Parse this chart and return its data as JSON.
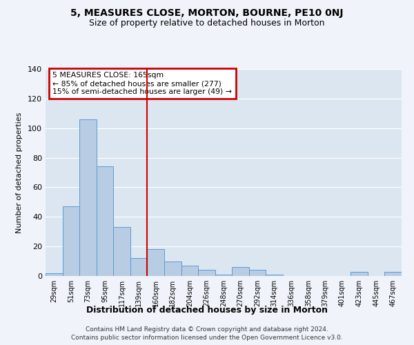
{
  "title": "5, MEASURES CLOSE, MORTON, BOURNE, PE10 0NJ",
  "subtitle": "Size of property relative to detached houses in Morton",
  "xlabel": "Distribution of detached houses by size in Morton",
  "ylabel": "Number of detached properties",
  "categories": [
    "29sqm",
    "51sqm",
    "73sqm",
    "95sqm",
    "117sqm",
    "139sqm",
    "160sqm",
    "182sqm",
    "204sqm",
    "226sqm",
    "248sqm",
    "270sqm",
    "292sqm",
    "314sqm",
    "336sqm",
    "358sqm",
    "379sqm",
    "401sqm",
    "423sqm",
    "445sqm",
    "467sqm"
  ],
  "values": [
    2,
    47,
    106,
    74,
    33,
    12,
    18,
    10,
    7,
    4,
    1,
    6,
    4,
    1,
    0,
    0,
    0,
    0,
    3,
    0,
    3
  ],
  "bar_color": "#b8cce4",
  "bar_edge_color": "#5b9bd5",
  "vline_x_index": 6,
  "vline_color": "#cc0000",
  "annotation_line1": "5 MEASURES CLOSE: 165sqm",
  "annotation_line2": "← 85% of detached houses are smaller (277)",
  "annotation_line3": "15% of semi-detached houses are larger (49) →",
  "annotation_box_color": "#cc0000",
  "ylim": [
    0,
    140
  ],
  "yticks": [
    0,
    20,
    40,
    60,
    80,
    100,
    120,
    140
  ],
  "bg_color": "#dce6f1",
  "grid_color": "#ffffff",
  "fig_bg_color": "#f0f4fa",
  "footer_line1": "Contains HM Land Registry data © Crown copyright and database right 2024.",
  "footer_line2": "Contains public sector information licensed under the Open Government Licence v3.0."
}
